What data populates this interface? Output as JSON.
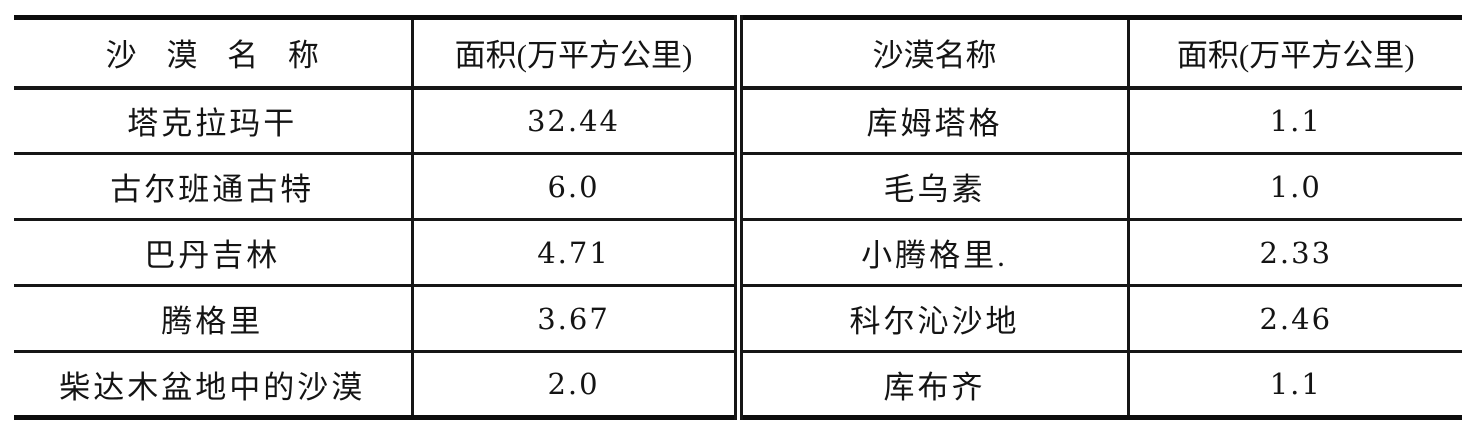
{
  "page": {
    "kind": "scanned printed table",
    "background_color": "#ffffff",
    "ink_color": "#141414"
  },
  "table": {
    "left": {
      "header_name": "沙 漠 名 称",
      "header_area": "面积(万平方公里)",
      "rows": [
        {
          "name": "塔克拉玛干",
          "area": "32.44"
        },
        {
          "name": "古尔班通古特",
          "area": "6.0"
        },
        {
          "name": "巴丹吉林",
          "area": "4.71"
        },
        {
          "name": "腾格里",
          "area": "3.67"
        },
        {
          "name": "柴达木盆地中的沙漠",
          "area": "2.0"
        }
      ]
    },
    "right": {
      "header_name": "沙漠名称",
      "header_area": "面积(万平方公里)",
      "rows": [
        {
          "name": "库姆塔格",
          "area": "1.1"
        },
        {
          "name": "毛乌素",
          "area": "1.0"
        },
        {
          "name": "小腾格里.",
          "area": "2.33"
        },
        {
          "name": "科尔沁沙地",
          "area": "2.46"
        },
        {
          "name": "库布齐",
          "area": "1.1"
        }
      ]
    }
  },
  "chart_data": {
    "type": "table",
    "title": "",
    "columns": [
      "沙漠名称",
      "面积(万平方公里)"
    ],
    "rows": [
      [
        "塔克拉玛干",
        32.44
      ],
      [
        "古尔班通古特",
        6.0
      ],
      [
        "巴丹吉林",
        4.71
      ],
      [
        "腾格里",
        3.67
      ],
      [
        "柴达木盆地中的沙漠",
        2.0
      ],
      [
        "库姆塔格",
        1.1
      ],
      [
        "毛乌素",
        1.0
      ],
      [
        "小腾格里",
        2.33
      ],
      [
        "科尔沁沙地",
        2.46
      ],
      [
        "库布齐",
        1.1
      ]
    ]
  }
}
